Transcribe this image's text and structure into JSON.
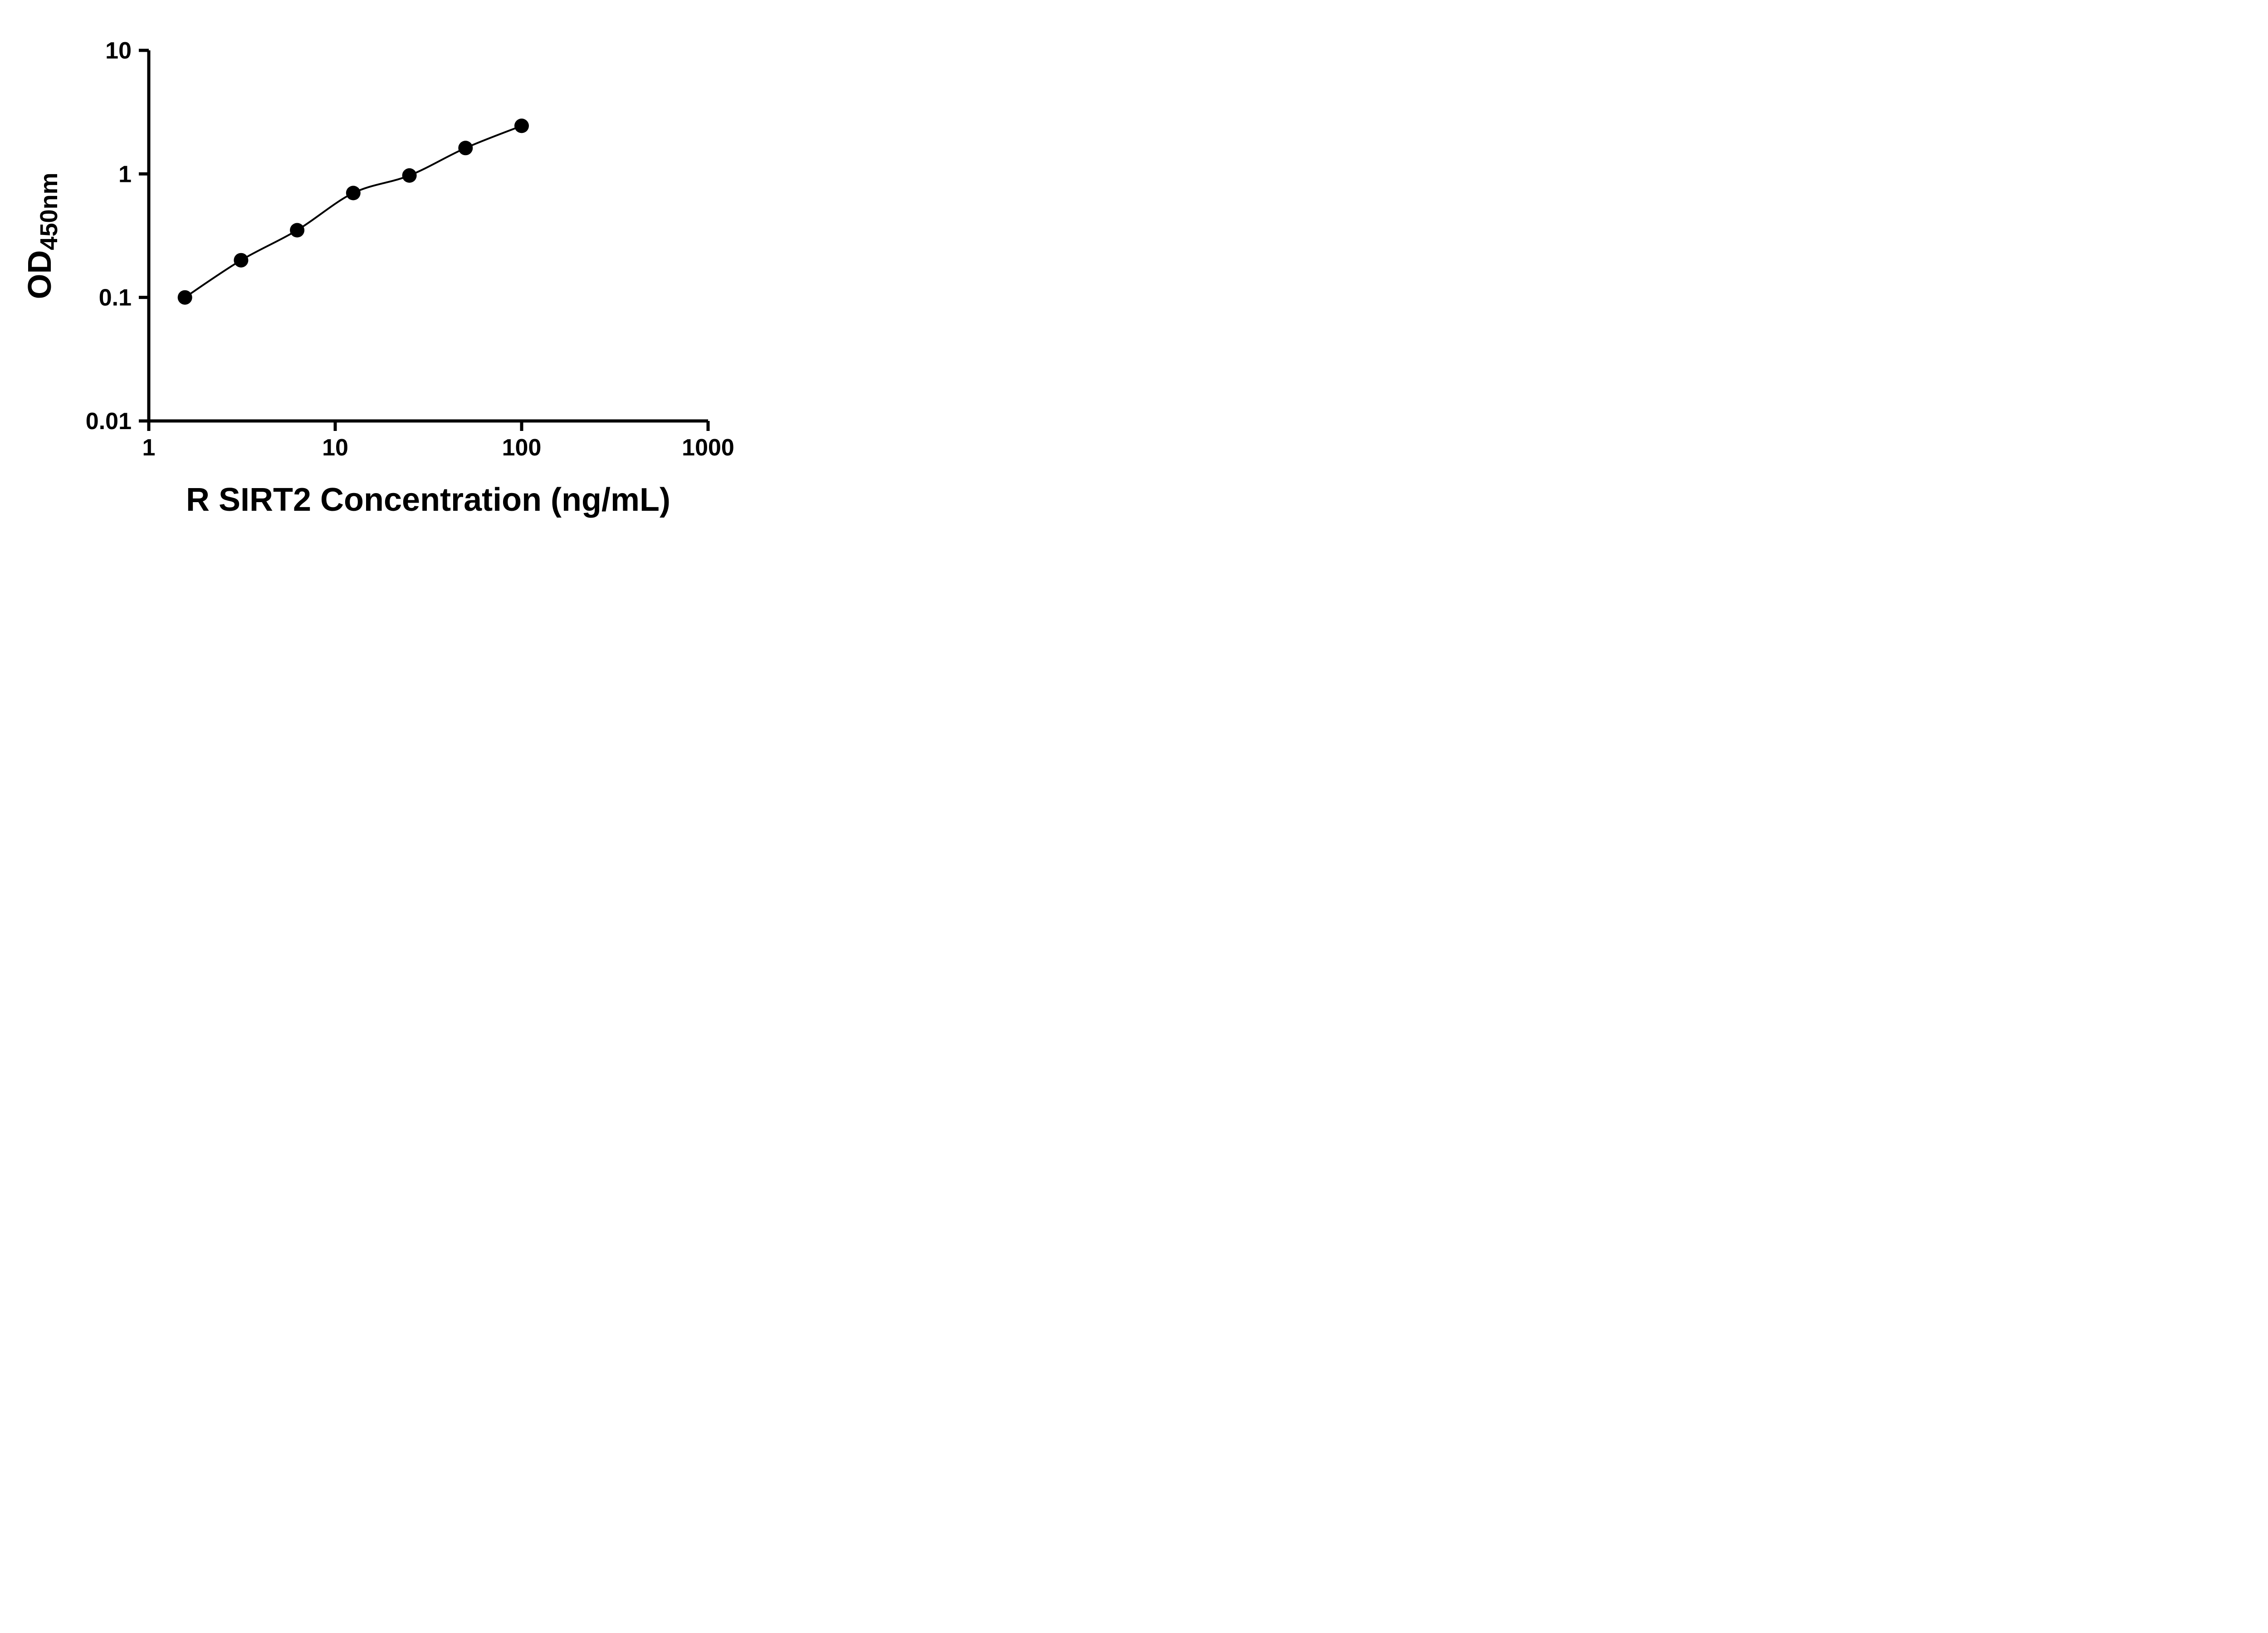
{
  "figure": {
    "background": "#ffffff"
  },
  "colors": {
    "axis": "#000000",
    "marker": "#000000",
    "line": "#000000",
    "text": "#000000"
  },
  "chart_data": {
    "type": "scatter",
    "title": "",
    "xlabel": "R SIRT2 Concentration (ng/mL)",
    "ylabel_main": "OD",
    "ylabel_sub": "450nm",
    "x_scale": "log",
    "y_scale": "log",
    "xlim": [
      1,
      1000
    ],
    "ylim": [
      0.01,
      10
    ],
    "x_ticks": [
      1,
      10,
      100,
      1000
    ],
    "x_tick_labels": [
      "1",
      "10",
      "100",
      "1000"
    ],
    "y_ticks": [
      0.01,
      0.1,
      1,
      10
    ],
    "y_tick_labels": [
      "0.01",
      "0.1",
      "1",
      "10"
    ],
    "grid": false,
    "legend": "none",
    "series": [
      {
        "marker": "circle",
        "line": "smooth-fit",
        "color": "#000000",
        "x": [
          1.5625,
          3.125,
          6.25,
          12.5,
          25,
          50,
          100
        ],
        "y": [
          0.1,
          0.2,
          0.35,
          0.7,
          0.97,
          1.62,
          2.45
        ]
      }
    ]
  }
}
